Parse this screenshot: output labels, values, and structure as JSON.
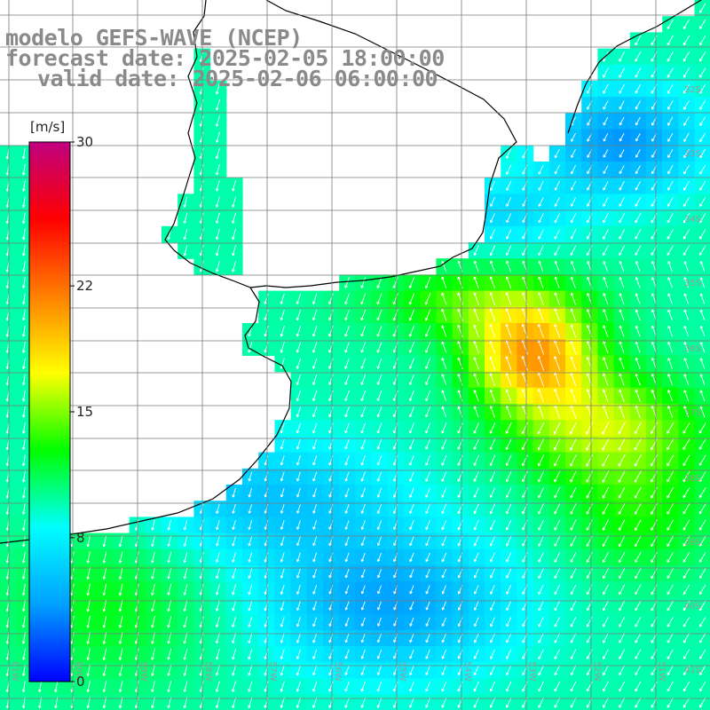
{
  "header": {
    "model": "modelo GEFS-WAVE (NCEP)",
    "forecast": "forecast date: 2025-02-05 18:00:00",
    "valid": "valid date: 2025-02-06 06:00:00"
  },
  "colorbar": {
    "units": "[m/s]",
    "min": 0,
    "max": 30,
    "tick_labels": [
      "30",
      "22",
      "15",
      "8",
      "0"
    ],
    "tick_values": [
      30,
      22,
      15,
      8,
      0
    ],
    "colors": [
      "#0000ff",
      "#00a0ff",
      "#00ffff",
      "#00ff00",
      "#ffff00",
      "#ff8000",
      "#ff0000",
      "#c00080"
    ]
  },
  "map": {
    "variable": "wind speed",
    "lat_labels": [
      "32S",
      "33S",
      "34S",
      "35S",
      "36S",
      "37S",
      "38S",
      "39S",
      "40S",
      "41S"
    ],
    "lon_labels": [
      "61W",
      "60W",
      "59W",
      "58W",
      "57W",
      "56W",
      "55W",
      "54W",
      "53W",
      "52W",
      "51W"
    ],
    "colors": {
      "land": "#ffffff",
      "coastline": "#000000",
      "grid": "#7a7a7a",
      "arrows": "#ffffff"
    }
  }
}
